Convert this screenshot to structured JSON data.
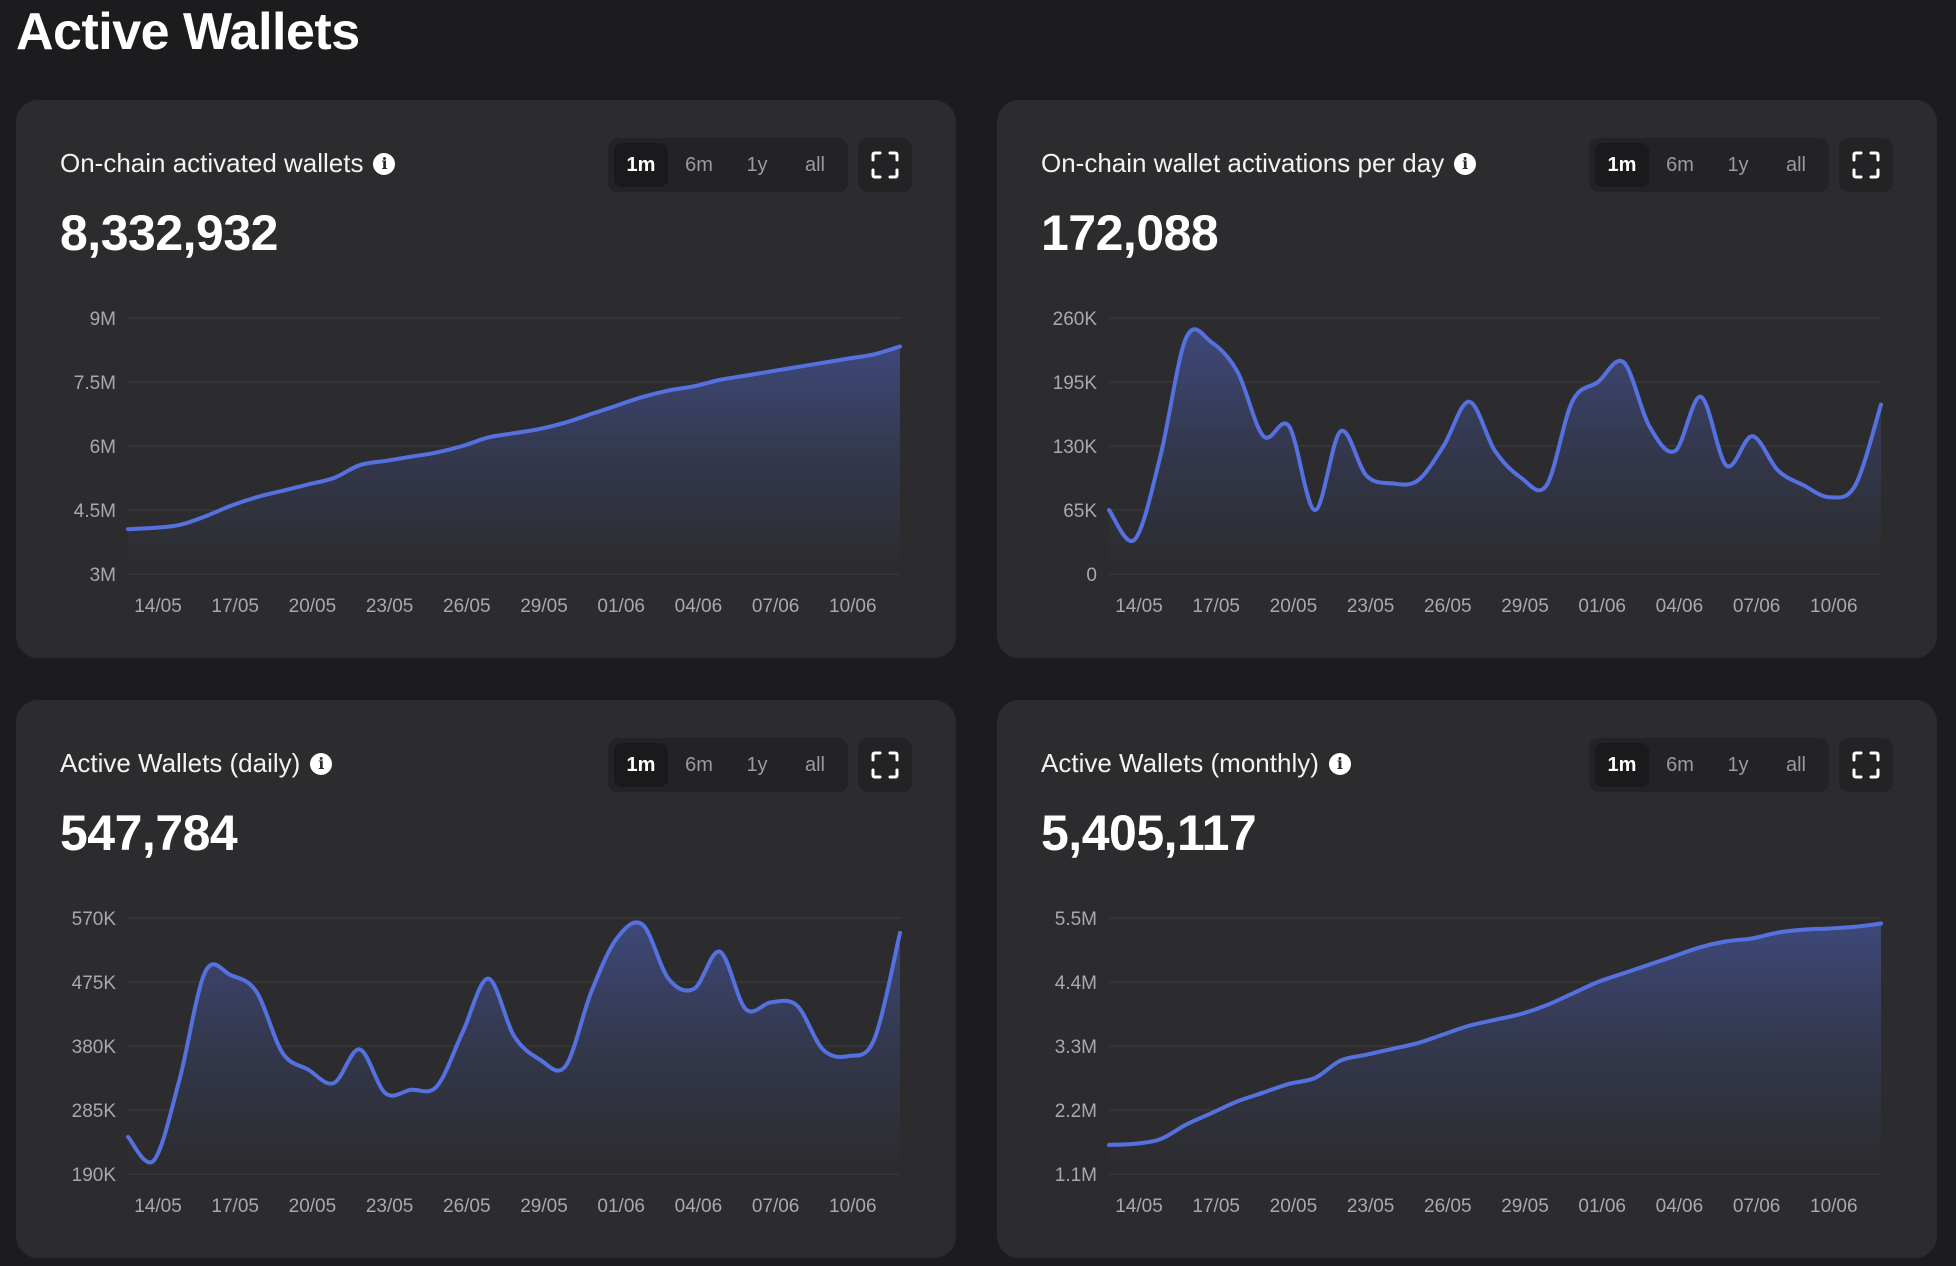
{
  "page": {
    "title": "Active Wallets"
  },
  "ranges": [
    "1m",
    "6m",
    "1y",
    "all"
  ],
  "active_range": "1m",
  "colors": {
    "line": "#5571e0",
    "fill_top": "#3f4a7e",
    "fill_bottom": "#2c2c2e",
    "grid": "#38383b"
  },
  "cards": [
    {
      "title": "On-chain activated wallets",
      "value": "8,332,932"
    },
    {
      "title": "On-chain wallet activations per day",
      "value": "172,088"
    },
    {
      "title": "Active Wallets (daily)",
      "value": "547,784"
    },
    {
      "title": "Active Wallets (monthly)",
      "value": "5,405,117"
    }
  ],
  "chart_data": [
    {
      "type": "area",
      "title": "On-chain activated wallets",
      "x_ticks": [
        "14/05",
        "17/05",
        "20/05",
        "23/05",
        "26/05",
        "29/05",
        "01/06",
        "04/06",
        "07/06",
        "10/06"
      ],
      "y_ticks": [
        "9M",
        "7.5M",
        "6M",
        "4.5M",
        "3M"
      ],
      "ylim": [
        3000000,
        9000000
      ],
      "x": [
        0,
        1,
        2,
        3,
        4,
        5,
        6,
        7,
        8,
        9,
        10,
        11,
        12,
        13,
        14,
        15,
        16,
        17,
        18,
        19,
        20,
        21,
        22,
        23,
        24,
        25,
        26,
        27,
        28,
        29,
        30
      ],
      "values": [
        4050000,
        4080000,
        4150000,
        4350000,
        4600000,
        4800000,
        4950000,
        5100000,
        5250000,
        5550000,
        5650000,
        5750000,
        5850000,
        6000000,
        6200000,
        6300000,
        6400000,
        6550000,
        6750000,
        6950000,
        7150000,
        7300000,
        7400000,
        7550000,
        7650000,
        7750000,
        7850000,
        7950000,
        8050000,
        8150000,
        8332932
      ]
    },
    {
      "type": "area",
      "title": "On-chain wallet activations per day",
      "x_ticks": [
        "14/05",
        "17/05",
        "20/05",
        "23/05",
        "26/05",
        "29/05",
        "01/06",
        "04/06",
        "07/06",
        "10/06"
      ],
      "y_ticks": [
        "260K",
        "195K",
        "130K",
        "65K",
        "0"
      ],
      "ylim": [
        0,
        260000
      ],
      "x": [
        0,
        1,
        2,
        3,
        4,
        5,
        6,
        7,
        8,
        9,
        10,
        11,
        12,
        13,
        14,
        15,
        16,
        17,
        18,
        19,
        20,
        21,
        22,
        23,
        24,
        25,
        26,
        27,
        28,
        29,
        30
      ],
      "values": [
        65000,
        35000,
        120000,
        240000,
        235000,
        205000,
        140000,
        150000,
        65000,
        145000,
        100000,
        92000,
        95000,
        130000,
        175000,
        125000,
        98000,
        90000,
        175000,
        195000,
        215000,
        150000,
        125000,
        180000,
        110000,
        140000,
        105000,
        90000,
        78000,
        90000,
        172088
      ]
    },
    {
      "type": "area",
      "title": "Active Wallets (daily)",
      "x_ticks": [
        "14/05",
        "17/05",
        "20/05",
        "23/05",
        "26/05",
        "29/05",
        "01/06",
        "04/06",
        "07/06",
        "10/06"
      ],
      "y_ticks": [
        "570K",
        "475K",
        "380K",
        "285K",
        "190K"
      ],
      "ylim": [
        190000,
        570000
      ],
      "x": [
        0,
        1,
        2,
        3,
        4,
        5,
        6,
        7,
        8,
        9,
        10,
        11,
        12,
        13,
        14,
        15,
        16,
        17,
        18,
        19,
        20,
        21,
        22,
        23,
        24,
        25,
        26,
        27,
        28,
        29,
        30
      ],
      "values": [
        245000,
        210000,
        330000,
        490000,
        485000,
        460000,
        370000,
        345000,
        325000,
        375000,
        310000,
        315000,
        320000,
        400000,
        480000,
        395000,
        360000,
        350000,
        460000,
        540000,
        560000,
        480000,
        465000,
        520000,
        435000,
        445000,
        440000,
        375000,
        365000,
        390000,
        547784
      ]
    },
    {
      "type": "area",
      "title": "Active Wallets (monthly)",
      "x_ticks": [
        "14/05",
        "17/05",
        "20/05",
        "23/05",
        "26/05",
        "29/05",
        "01/06",
        "04/06",
        "07/06",
        "10/06"
      ],
      "y_ticks": [
        "5.5M",
        "4.4M",
        "3.3M",
        "2.2M",
        "1.1M"
      ],
      "ylim": [
        1100000,
        5500000
      ],
      "x": [
        0,
        1,
        2,
        3,
        4,
        5,
        6,
        7,
        8,
        9,
        10,
        11,
        12,
        13,
        14,
        15,
        16,
        17,
        18,
        19,
        20,
        21,
        22,
        23,
        24,
        25,
        26,
        27,
        28,
        29,
        30
      ],
      "values": [
        1600000,
        1620000,
        1700000,
        1950000,
        2150000,
        2350000,
        2500000,
        2650000,
        2750000,
        3050000,
        3150000,
        3250000,
        3350000,
        3500000,
        3650000,
        3750000,
        3850000,
        4000000,
        4200000,
        4400000,
        4550000,
        4700000,
        4850000,
        5000000,
        5100000,
        5150000,
        5250000,
        5300000,
        5320000,
        5350000,
        5405117
      ]
    }
  ]
}
